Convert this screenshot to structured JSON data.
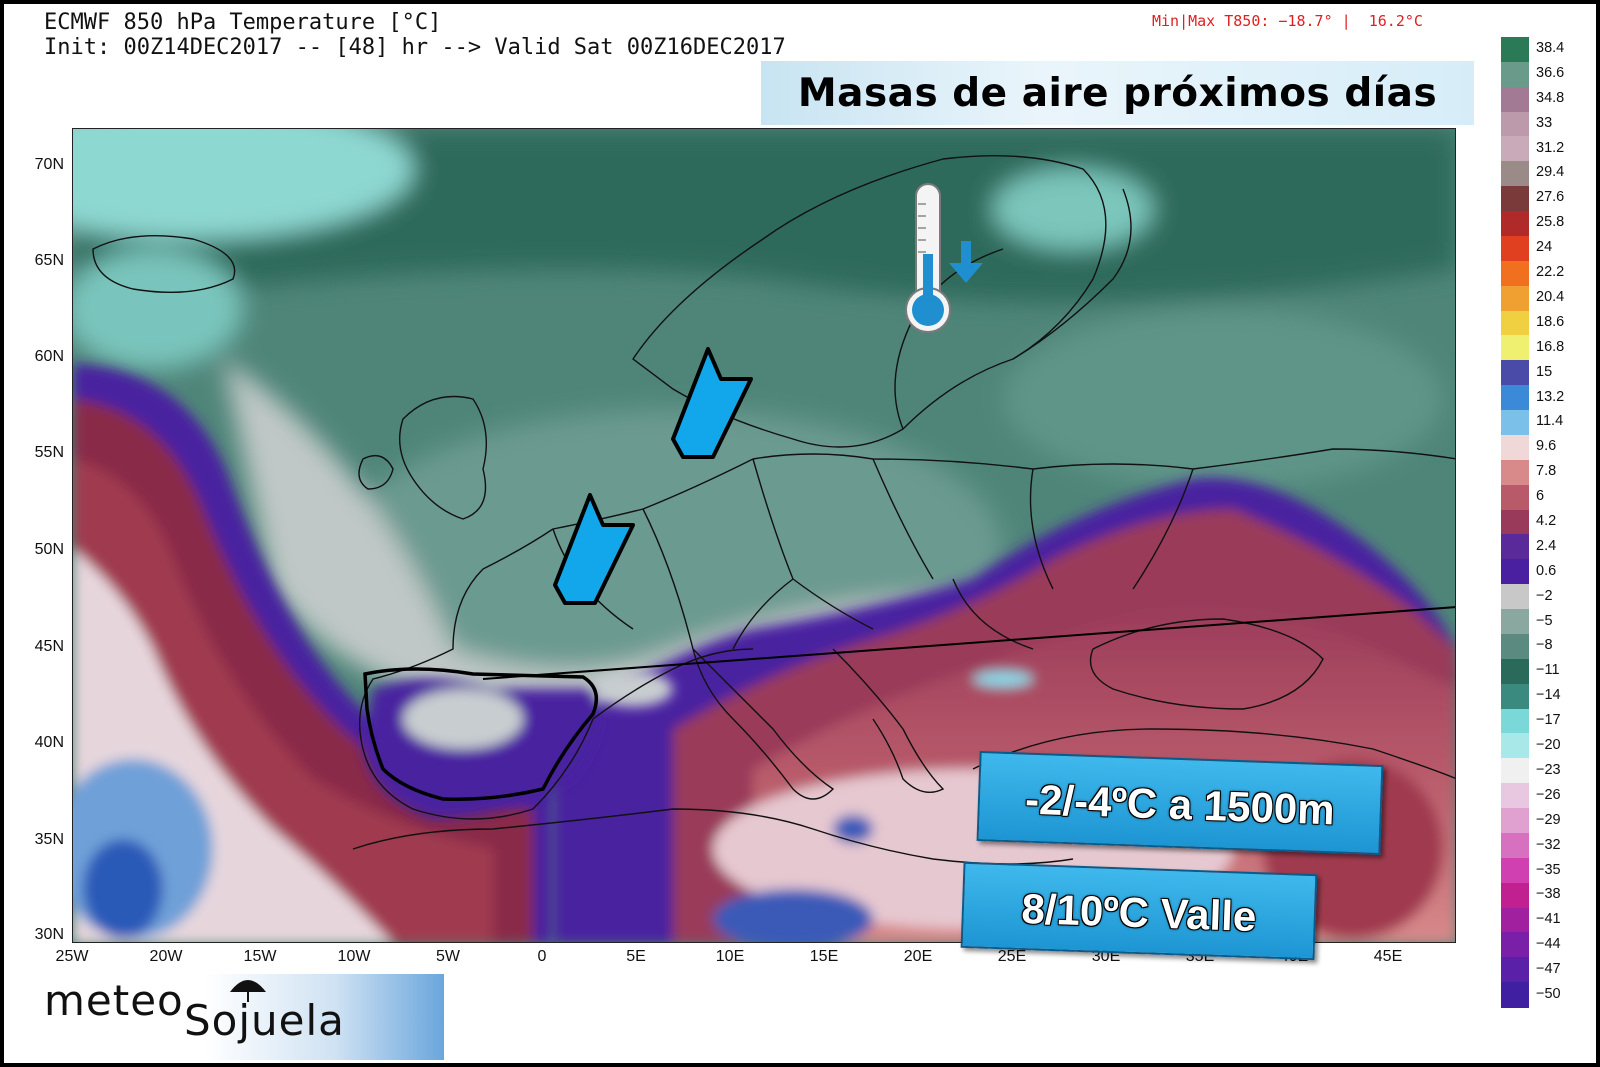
{
  "header": {
    "line1": "ECMWF 850 hPa Temperature [°C]",
    "line2": "Init: 00Z14DEC2017 -- [48] hr --> Valid Sat 00Z16DEC2017",
    "minmax": "Min|Max T850: −18.7° |  16.2°C"
  },
  "headline": "Masas de aire próximos días",
  "axes": {
    "lat_labels": [
      "70N",
      "65N",
      "60N",
      "55N",
      "50N",
      "45N",
      "40N",
      "35N",
      "30N"
    ],
    "lon_labels": [
      "25W",
      "20W",
      "15W",
      "10W",
      "5W",
      "0",
      "5E",
      "10E",
      "15E",
      "20E",
      "25E",
      "30E",
      "35E",
      "40E",
      "45E"
    ]
  },
  "colorbar": {
    "labels": [
      "38.4",
      "36.6",
      "34.8",
      "33",
      "31.2",
      "29.4",
      "27.6",
      "25.8",
      "24",
      "22.2",
      "20.4",
      "18.6",
      "16.8",
      "15",
      "13.2",
      "11.4",
      "9.6",
      "7.8",
      "6",
      "4.2",
      "2.4",
      "0.6",
      "−2",
      "−5",
      "−8",
      "−11",
      "−14",
      "−17",
      "−20",
      "−23",
      "−26",
      "−29",
      "−32",
      "−35",
      "−38",
      "−41",
      "−44",
      "−47",
      "−50"
    ],
    "colors": [
      "#2a7a58",
      "#6a9a8a",
      "#a27a94",
      "#bc9aac",
      "#c8aab8",
      "#9a8a88",
      "#7a3a3a",
      "#b02a2a",
      "#e04020",
      "#f07020",
      "#f0a030",
      "#f0d040",
      "#f0f070",
      "#4a4aa8",
      "#3a8ad8",
      "#7ac0e8",
      "#f0d8d8",
      "#d88a8a",
      "#b85a6a",
      "#9a3a5a",
      "#5a2a9a",
      "#4a20a0",
      "#c8c8c8",
      "#8aa8a0",
      "#5a8a80",
      "#2a6a5a",
      "#3a8a80",
      "#7ad8d8",
      "#a8e8e8",
      "#f0f0f0",
      "#e8c8e0",
      "#e0a0d0",
      "#d870c0",
      "#d040b0",
      "#c02090",
      "#a020a0",
      "#7a20a8",
      "#5a20a8",
      "#4020a0"
    ]
  },
  "callouts": [
    "-2/-4ºC a 1500m",
    "8/10ºC Valle"
  ],
  "logo": {
    "part1": "meteo",
    "part2": "Sojuela"
  }
}
